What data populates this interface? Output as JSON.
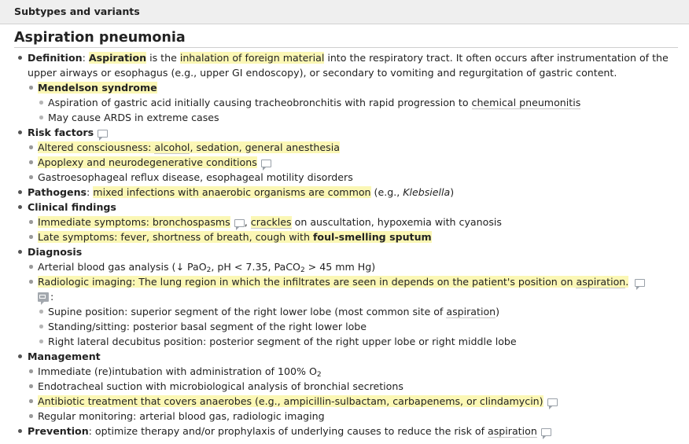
{
  "header": {
    "title": "Subtypes and variants"
  },
  "section_title": "Aspiration pneumonia",
  "definition": {
    "label": "Definition",
    "colon": ": ",
    "term": "Aspiration",
    "t1": " is the ",
    "hl": "inhalation of foreign material",
    "t2": " into the respiratory tract. It often occurs after instrumentation of the upper airways or esophagus (e.g., upper GI endoscopy), or secondary to vomiting and regurgitation of gastric content.",
    "mendelson": {
      "label": "Mendelson syndrome",
      "item1_text": "Aspiration of gastric acid initially causing tracheobronchitis with rapid progression to ",
      "item1_link": "chemical pneumonitis",
      "item2": "May cause ARDS in extreme cases"
    }
  },
  "risk_factors": {
    "label": "Risk factors",
    "item1_a": "Altered consciousness: ",
    "item1_link1": "alcohol",
    "item1_b": ", sedation, general anesthesia",
    "item2": "Apoplexy and neurodegenerative conditions",
    "item3": "Gastroesophageal reflux disease, esophageal motility disorders"
  },
  "pathogens": {
    "label": "Pathogens",
    "colon": ": ",
    "hl": "mixed infections with anaerobic organisms are common",
    "t1": " (e.g., ",
    "italic": "Klebsiella",
    "t2": ")"
  },
  "clinical": {
    "label": "Clinical findings",
    "imm_hl": "Immediate symptoms: bronchospasms",
    "comma": ", ",
    "crackles": "crackles",
    "imm_rest": " on auscultation, hypoxemia with cyanosis",
    "late_hl": "Late symptoms: fever, shortness of breath, cough with ",
    "late_bold": "foul-smelling sputum"
  },
  "diagnosis": {
    "label": "Diagnosis",
    "abg_a": "Arterial blood gas analysis (↓ PaO",
    "abg_sub1": "2",
    "abg_b": ", pH < 7.35, PaCO",
    "abg_sub2": "2",
    "abg_c": " > 45 mm Hg)",
    "radio_hl": "Radiologic imaging: The lung region in which the infiltrates are seen in depends on the patient's position on ",
    "radio_link": "aspiration",
    "radio_end": ".",
    "radio_colon": ":",
    "pos1_a": "Supine position: superior segment of the right lower lobe (most common site of ",
    "pos1_link": "aspiration",
    "pos1_b": ")",
    "pos2": "Standing/sitting: posterior basal segment of the right lower lobe",
    "pos3": "Right lateral decubitus position: posterior segment of the right upper lobe or right middle lobe"
  },
  "management": {
    "label": "Management",
    "item1_a": "Immediate (re)intubation with administration of 100% O",
    "item1_sub": "2",
    "item2": "Endotracheal suction with microbiological analysis of bronchial secretions",
    "item3_hl": "Antibiotic treatment that covers anaerobes (e.g., ampicillin-sulbactam, carbapenems, or clindamycin)",
    "item4": "Regular monitoring: arterial blood gas, radiologic imaging"
  },
  "prevention": {
    "label": "Prevention",
    "colon": ": ",
    "text": "optimize therapy and/or prophylaxis of underlying causes to reduce the risk of ",
    "link": "aspiration"
  }
}
